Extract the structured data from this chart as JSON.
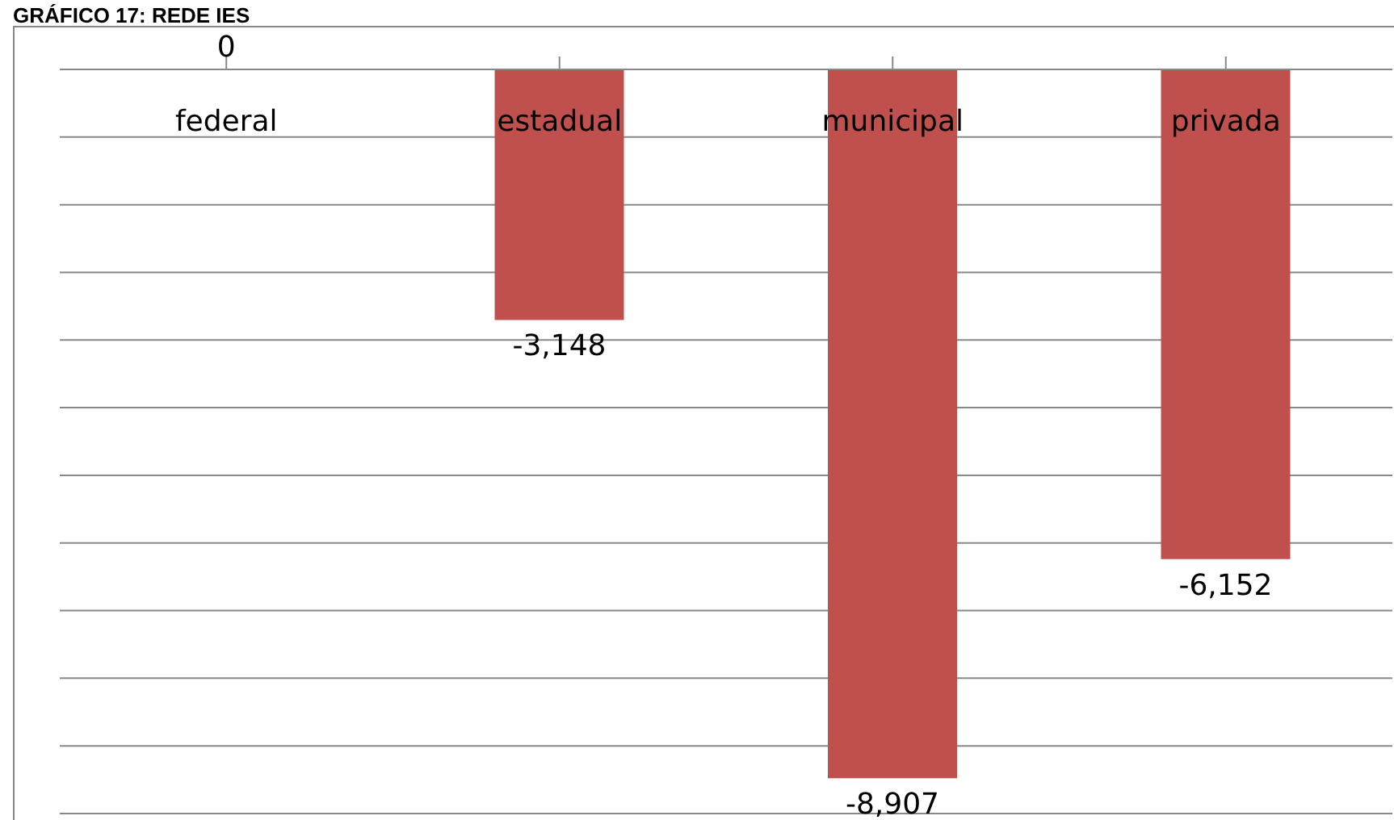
{
  "chart_data": {
    "type": "bar",
    "title": "GRÁFICO 17: REDE IES",
    "categories": [
      "federal",
      "estadual",
      "municipal",
      "privada"
    ],
    "values": [
      0,
      -3148,
      -8907,
      -6152
    ],
    "value_labels": [
      "0",
      "-3,148",
      "-8,907",
      "-6,152"
    ],
    "color": "#c0504d",
    "grid": "y",
    "tick_labels": "x",
    "legend": false
  }
}
